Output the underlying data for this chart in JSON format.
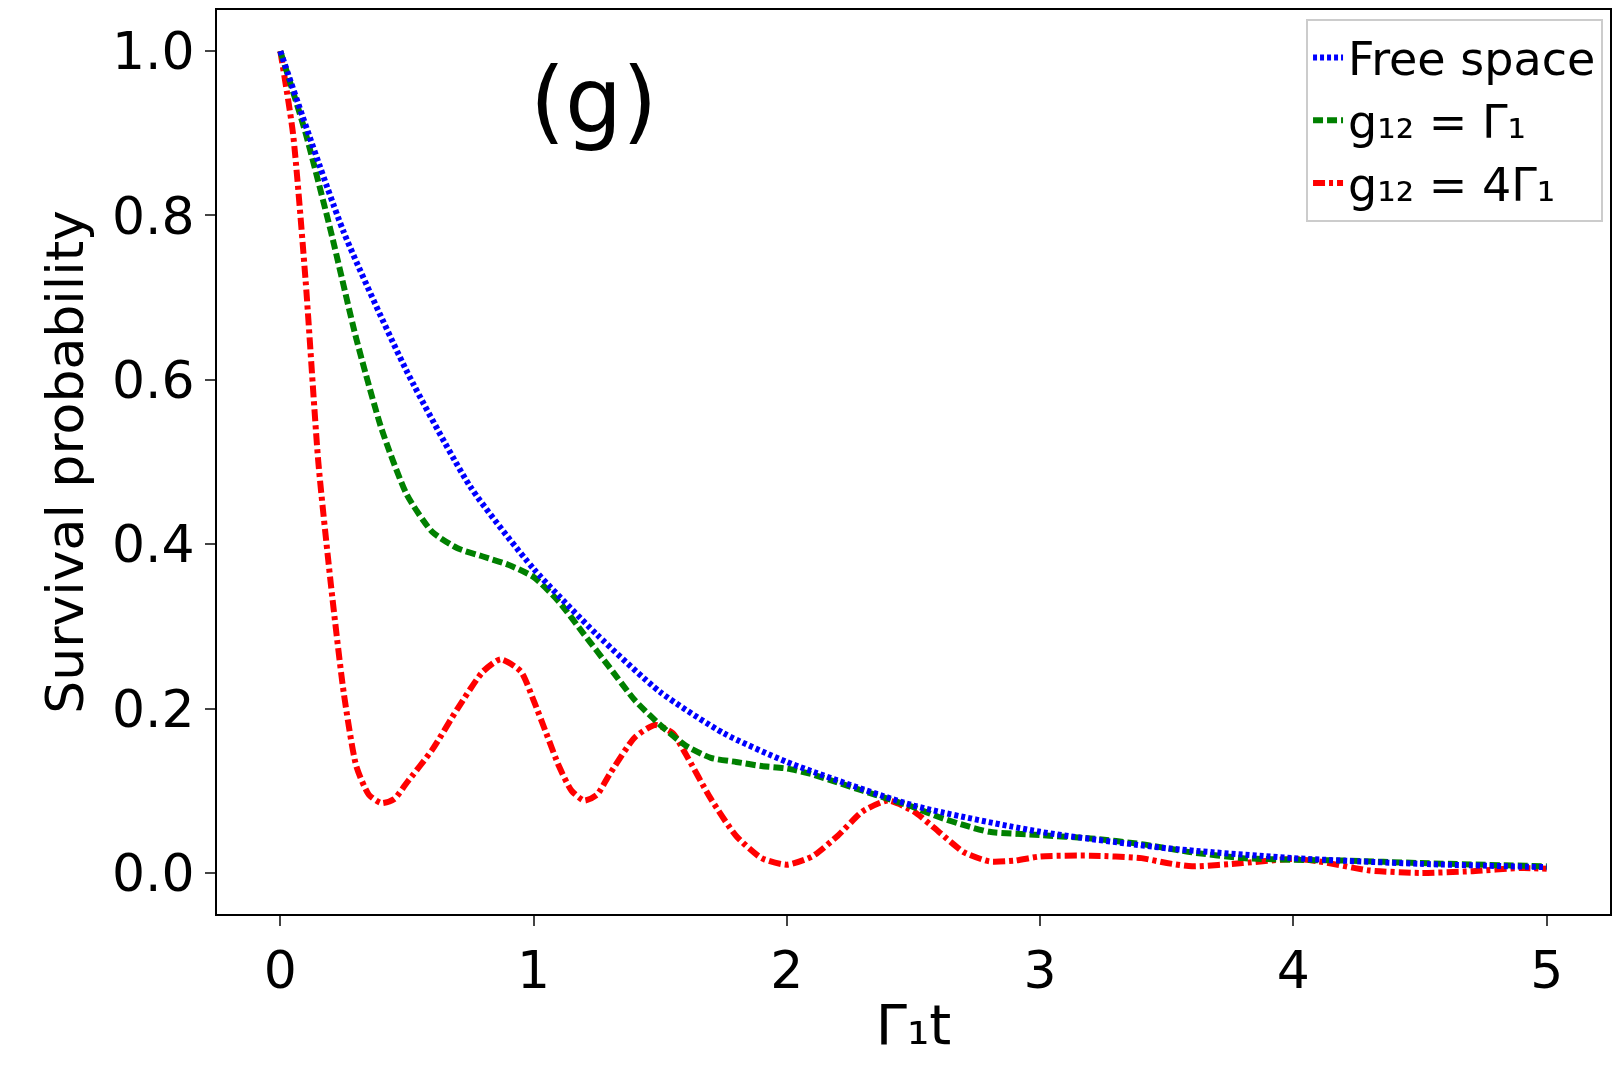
{
  "chart_data": {
    "type": "line",
    "xlabel": "Γ₁t",
    "ylabel": "Survival probability",
    "annotations": [
      "(g)"
    ],
    "xlim": [
      -0.25,
      5.25
    ],
    "xticks": [
      0,
      1,
      2,
      3,
      4,
      5
    ],
    "ylim": [
      -0.05,
      1.05
    ],
    "yticks": [
      {
        "value": 0,
        "label": "0.0"
      },
      0.2,
      0.4,
      0.6,
      0.8,
      {
        "value": 1,
        "label": "1.0"
      }
    ],
    "legend": "top right",
    "marker": "none",
    "series": [
      {
        "name": "Free space",
        "color": "#0000ff",
        "line_style": "dotted",
        "x": [
          0,
          0.25,
          0.5,
          0.75,
          1,
          1.25,
          1.5,
          1.75,
          2,
          2.5,
          3,
          3.5,
          4,
          4.5,
          5
        ],
        "values": [
          1,
          0.78,
          0.61,
          0.47,
          0.37,
          0.29,
          0.22,
          0.17,
          0.135,
          0.082,
          0.05,
          0.03,
          0.018,
          0.011,
          0.007
        ]
      },
      {
        "name": "g₁₂ = Γ₁",
        "color": "#008000",
        "line_style": "dashed",
        "x": [
          0,
          0.1,
          0.2,
          0.3,
          0.4,
          0.5,
          0.6,
          0.7,
          0.8,
          0.9,
          1.0,
          1.1,
          1.2,
          1.3,
          1.4,
          1.5,
          1.6,
          1.7,
          1.8,
          1.9,
          2.0,
          2.1,
          2.2,
          2.3,
          2.4,
          2.5,
          2.6,
          2.7,
          2.8,
          3.0,
          3.2,
          3.4,
          3.6,
          3.8,
          4.0,
          4.2,
          4.5,
          5.0
        ],
        "values": [
          1,
          0.9,
          0.78,
          0.65,
          0.54,
          0.46,
          0.415,
          0.395,
          0.385,
          0.375,
          0.36,
          0.33,
          0.29,
          0.25,
          0.21,
          0.18,
          0.155,
          0.14,
          0.135,
          0.13,
          0.127,
          0.12,
          0.11,
          0.1,
          0.09,
          0.08,
          0.068,
          0.058,
          0.05,
          0.046,
          0.042,
          0.035,
          0.025,
          0.018,
          0.016,
          0.015,
          0.012,
          0.008
        ]
      },
      {
        "name": "g₁₂ = 4Γ₁",
        "color": "#ff0000",
        "line_style": "dashdot",
        "x": [
          0,
          0.05,
          0.1,
          0.15,
          0.2,
          0.25,
          0.3,
          0.35,
          0.4,
          0.45,
          0.5,
          0.6,
          0.7,
          0.8,
          0.87,
          0.95,
          1.0,
          1.05,
          1.1,
          1.15,
          1.2,
          1.25,
          1.3,
          1.4,
          1.48,
          1.55,
          1.6,
          1.7,
          1.8,
          1.9,
          2.0,
          2.1,
          2.2,
          2.3,
          2.4,
          2.5,
          2.6,
          2.7,
          2.8,
          2.9,
          3.0,
          3.2,
          3.4,
          3.5,
          3.6,
          3.8,
          4.0,
          4.1,
          4.3,
          4.5,
          4.7,
          4.9,
          5.0
        ],
        "values": [
          1,
          0.9,
          0.72,
          0.5,
          0.35,
          0.22,
          0.13,
          0.095,
          0.085,
          0.09,
          0.11,
          0.15,
          0.2,
          0.245,
          0.26,
          0.245,
          0.21,
          0.17,
          0.13,
          0.1,
          0.088,
          0.095,
          0.12,
          0.165,
          0.18,
          0.17,
          0.145,
          0.09,
          0.045,
          0.018,
          0.01,
          0.02,
          0.045,
          0.075,
          0.088,
          0.075,
          0.05,
          0.025,
          0.014,
          0.015,
          0.02,
          0.021,
          0.018,
          0.012,
          0.008,
          0.012,
          0.017,
          0.014,
          0.003,
          0.0,
          0.002,
          0.006,
          0.005
        ]
      }
    ]
  }
}
